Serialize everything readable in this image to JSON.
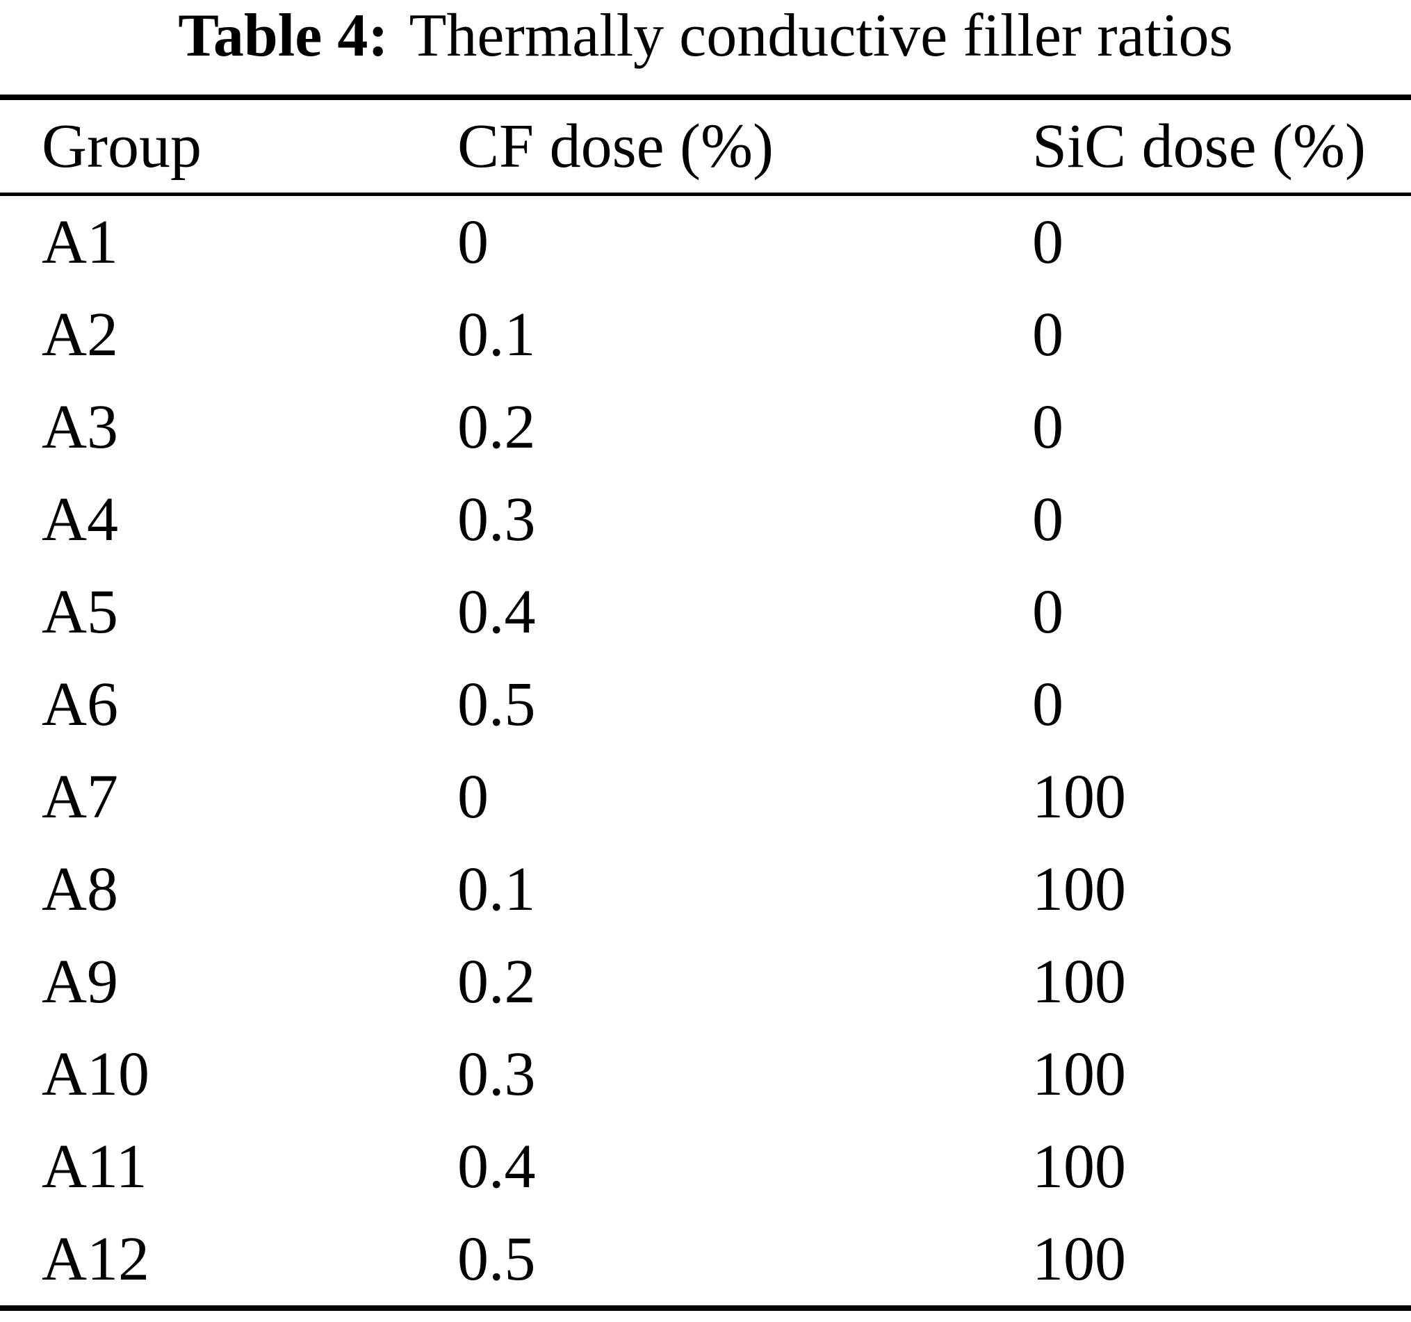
{
  "caption": {
    "label": "Table 4:",
    "text": "Thermally conductive filler ratios"
  },
  "table": {
    "columns": [
      "Group",
      "CF dose (%)",
      "SiC dose (%)"
    ],
    "rows": [
      {
        "group": "A1",
        "cf_dose": "0",
        "sic_dose": "0"
      },
      {
        "group": "A2",
        "cf_dose": "0.1",
        "sic_dose": "0"
      },
      {
        "group": "A3",
        "cf_dose": "0.2",
        "sic_dose": "0"
      },
      {
        "group": "A4",
        "cf_dose": "0.3",
        "sic_dose": "0"
      },
      {
        "group": "A5",
        "cf_dose": "0.4",
        "sic_dose": "0"
      },
      {
        "group": "A6",
        "cf_dose": "0.5",
        "sic_dose": "0"
      },
      {
        "group": "A7",
        "cf_dose": "0",
        "sic_dose": "100"
      },
      {
        "group": "A8",
        "cf_dose": "0.1",
        "sic_dose": "100"
      },
      {
        "group": "A9",
        "cf_dose": "0.2",
        "sic_dose": "100"
      },
      {
        "group": "A10",
        "cf_dose": "0.3",
        "sic_dose": "100"
      },
      {
        "group": "A11",
        "cf_dose": "0.4",
        "sic_dose": "100"
      },
      {
        "group": "A12",
        "cf_dose": "0.5",
        "sic_dose": "100"
      }
    ]
  },
  "colors": {
    "text": "#000000",
    "background": "#ffffff",
    "rule": "#000000"
  },
  "chart_data": {
    "type": "table",
    "title": "Table 4: Thermally conductive filler ratios",
    "categories": [
      "A1",
      "A2",
      "A3",
      "A4",
      "A5",
      "A6",
      "A7",
      "A8",
      "A9",
      "A10",
      "A11",
      "A12"
    ],
    "series": [
      {
        "name": "CF dose (%)",
        "values": [
          0,
          0.1,
          0.2,
          0.3,
          0.4,
          0.5,
          0,
          0.1,
          0.2,
          0.3,
          0.4,
          0.5
        ]
      },
      {
        "name": "SiC dose (%)",
        "values": [
          0,
          0,
          0,
          0,
          0,
          0,
          100,
          100,
          100,
          100,
          100,
          100
        ]
      }
    ]
  }
}
